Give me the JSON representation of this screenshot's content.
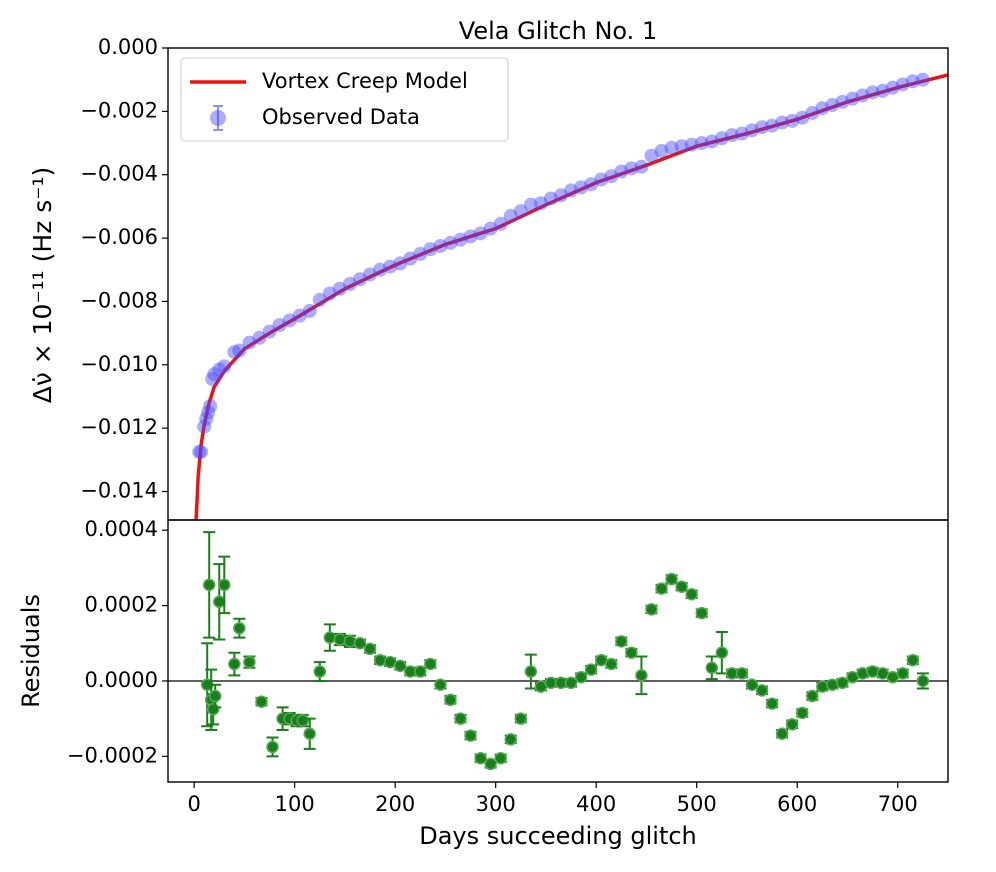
{
  "chart_data": [
    {
      "type": "line",
      "title": "Vela Glitch No. 1",
      "ylabel": "Δν̇ × 10⁻¹¹ (Hz s⁻¹)",
      "xlim": [
        -26,
        750
      ],
      "ylim": [
        -0.0149,
        0
      ],
      "yticks": [
        {
          "value": 0,
          "label": "0.000"
        },
        {
          "value": -0.002,
          "label": "−0.002"
        },
        {
          "value": -0.004,
          "label": "−0.004"
        },
        {
          "value": -0.006,
          "label": "−0.006"
        },
        {
          "value": -0.008,
          "label": "−0.008"
        },
        {
          "value": -0.01,
          "label": "−0.010"
        },
        {
          "value": -0.012,
          "label": "−0.012"
        },
        {
          "value": -0.014,
          "label": "−0.014"
        }
      ],
      "legend": "upper left",
      "series": [
        {
          "name": "Vortex Creep Model",
          "kind": "line",
          "color": "#ee1111",
          "x": [
            2,
            4,
            7,
            10,
            15,
            20,
            30,
            50,
            75,
            100,
            150,
            200,
            250,
            300,
            350,
            400,
            450,
            500,
            550,
            600,
            650,
            700,
            750
          ],
          "values": [
            -0.0149,
            -0.0135,
            -0.0125,
            -0.0119,
            -0.0112,
            -0.0107,
            -0.0102,
            -0.0095,
            -0.009,
            -0.00855,
            -0.0076,
            -0.00685,
            -0.0062,
            -0.0057,
            -0.00495,
            -0.00425,
            -0.0037,
            -0.0031,
            -0.0027,
            -0.00225,
            -0.0017,
            -0.00125,
            -0.00085
          ]
        },
        {
          "name": "Observed Data",
          "kind": "points",
          "color": "#4444ff",
          "x": [
            5,
            7,
            10,
            12,
            14,
            16,
            18,
            20,
            25,
            30,
            40,
            45,
            55,
            65,
            75,
            85,
            95,
            105,
            115,
            125,
            135,
            145,
            155,
            165,
            175,
            185,
            195,
            205,
            215,
            225,
            235,
            245,
            255,
            265,
            275,
            285,
            295,
            305,
            315,
            325,
            335,
            345,
            355,
            365,
            375,
            385,
            395,
            405,
            415,
            425,
            435,
            445,
            455,
            465,
            475,
            485,
            495,
            505,
            515,
            525,
            535,
            545,
            555,
            565,
            575,
            585,
            595,
            605,
            615,
            625,
            635,
            645,
            655,
            665,
            675,
            685,
            695,
            705,
            715,
            725
          ],
          "values": [
            -0.01275,
            -0.01275,
            -0.01195,
            -0.0117,
            -0.0115,
            -0.0113,
            -0.01045,
            -0.0103,
            -0.01015,
            -0.01005,
            -0.0096,
            -0.00955,
            -0.0093,
            -0.00915,
            -0.00895,
            -0.00875,
            -0.0086,
            -0.00845,
            -0.0083,
            -0.00795,
            -0.00775,
            -0.0076,
            -0.00745,
            -0.0073,
            -0.00715,
            -0.007,
            -0.0069,
            -0.0068,
            -0.00665,
            -0.0065,
            -0.00635,
            -0.00625,
            -0.00615,
            -0.00605,
            -0.00595,
            -0.00585,
            -0.0057,
            -0.00555,
            -0.0053,
            -0.00515,
            -0.00495,
            -0.0049,
            -0.00475,
            -0.00465,
            -0.0045,
            -0.0044,
            -0.0043,
            -0.00415,
            -0.00405,
            -0.0039,
            -0.0038,
            -0.00375,
            -0.0034,
            -0.00325,
            -0.00315,
            -0.0031,
            -0.00305,
            -0.003,
            -0.00295,
            -0.00285,
            -0.00275,
            -0.0027,
            -0.0026,
            -0.0025,
            -0.00245,
            -0.00235,
            -0.0023,
            -0.0022,
            -0.00205,
            -0.0019,
            -0.0018,
            -0.0017,
            -0.0016,
            -0.0015,
            -0.0014,
            -0.00135,
            -0.00125,
            -0.00115,
            -0.00105,
            -0.001
          ]
        }
      ]
    },
    {
      "type": "errorbar",
      "ylabel": "Residuals",
      "xlabel": "Days succeeding glitch",
      "color": "#1a7f1a",
      "xlim": [
        -26,
        750
      ],
      "ylim": [
        -0.000268,
        0.000427
      ],
      "hline": 0,
      "xticks": [
        0,
        100,
        200,
        300,
        400,
        500,
        600,
        700
      ],
      "yticks": [
        {
          "value": 0.0004,
          "label": "0.0004"
        },
        {
          "value": 0.0002,
          "label": "0.0002"
        },
        {
          "value": 0,
          "label": "0.0000"
        },
        {
          "value": -0.0002,
          "label": "−0.0002"
        }
      ],
      "x": [
        13,
        15,
        17,
        19,
        21,
        25,
        30,
        40,
        45,
        55,
        67,
        78,
        88,
        95,
        102,
        108,
        115,
        125,
        135,
        145,
        155,
        165,
        175,
        185,
        195,
        205,
        215,
        225,
        235,
        245,
        255,
        265,
        275,
        285,
        295,
        305,
        315,
        325,
        335,
        345,
        355,
        365,
        375,
        385,
        395,
        405,
        415,
        425,
        435,
        445,
        455,
        465,
        475,
        485,
        495,
        505,
        515,
        525,
        535,
        545,
        555,
        565,
        575,
        585,
        595,
        605,
        615,
        625,
        635,
        645,
        655,
        665,
        675,
        685,
        695,
        705,
        715,
        725
      ],
      "values": [
        -1e-05,
        0.000255,
        -5e-05,
        -7.5e-05,
        -4e-05,
        0.00021,
        0.000255,
        4.5e-05,
        0.00014,
        5e-05,
        -5.5e-05,
        -0.000175,
        -0.0001,
        -0.0001,
        -0.000105,
        -0.000105,
        -0.00014,
        2.5e-05,
        0.000115,
        0.00011,
        0.000105,
        0.0001,
        8.5e-05,
        5.5e-05,
        5e-05,
        4e-05,
        2.5e-05,
        2.5e-05,
        4.5e-05,
        -1e-05,
        -5e-05,
        -0.0001,
        -0.000145,
        -0.000205,
        -0.00022,
        -0.000205,
        -0.000155,
        -0.0001,
        2.5e-05,
        -1.5e-05,
        -5e-06,
        -5e-06,
        -5e-06,
        1e-05,
        3e-05,
        5.5e-05,
        4.5e-05,
        0.000105,
        7.5e-05,
        1.5e-05,
        0.00019,
        0.000245,
        0.00027,
        0.00025,
        0.00023,
        0.00018,
        3.5e-05,
        7.5e-05,
        2e-05,
        2e-05,
        -1e-05,
        -2.5e-05,
        -6e-05,
        -0.00014,
        -0.000115,
        -8.5e-05,
        -4e-05,
        -1.5e-05,
        -1e-05,
        -5e-06,
        1e-05,
        2e-05,
        2.5e-05,
        2e-05,
        1e-05,
        2e-05,
        5.5e-05,
        0
      ],
      "errors": [
        0.00011,
        0.00014,
        8e-05,
        4e-05,
        3e-05,
        0.0001,
        7.5e-05,
        3e-05,
        2.5e-05,
        1.5e-05,
        1e-05,
        2.5e-05,
        3e-05,
        1.5e-05,
        1.5e-05,
        1.5e-05,
        4e-05,
        2.5e-05,
        3.5e-05,
        1.5e-05,
        1.5e-05,
        1e-05,
        1e-05,
        1e-05,
        1e-05,
        1e-05,
        1e-05,
        1e-05,
        1e-05,
        1e-05,
        1e-05,
        1e-05,
        1e-05,
        1e-05,
        1e-05,
        1e-05,
        1e-05,
        1e-05,
        4.5e-05,
        1e-05,
        1e-05,
        1e-05,
        1e-05,
        1e-05,
        1e-05,
        1e-05,
        1e-05,
        1e-05,
        1e-05,
        5e-05,
        1e-05,
        1e-05,
        1e-05,
        1e-05,
        1e-05,
        1e-05,
        3e-05,
        5.5e-05,
        1e-05,
        1e-05,
        1e-05,
        1e-05,
        1e-05,
        1e-05,
        1e-05,
        1e-05,
        1e-05,
        1e-05,
        1e-05,
        1e-05,
        1e-05,
        1e-05,
        1e-05,
        1e-05,
        1e-05,
        1e-05,
        1e-05,
        2e-05
      ]
    }
  ]
}
